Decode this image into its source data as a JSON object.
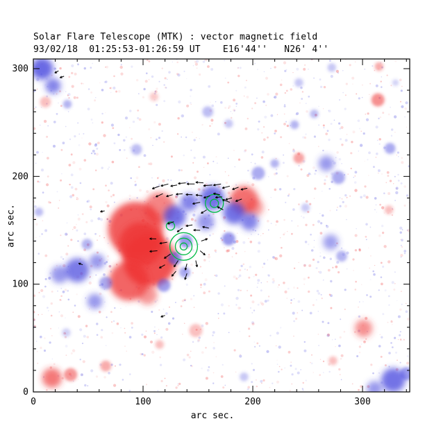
{
  "chart_data": {
    "type": "heatmap",
    "title": "Solar Flare Telescope (MTK) : vector magnetic field",
    "subtitle": "93/02/18  01:25:53-01:26:59 UT    E16'44''   N26' 4''",
    "xlabel": "arc sec.",
    "ylabel": "arc sec.",
    "xlim": [
      0,
      343
    ],
    "ylim": [
      0,
      309
    ],
    "x_major_ticks": [
      0,
      100,
      200,
      300
    ],
    "y_major_ticks": [
      0,
      100,
      200,
      300
    ],
    "minor_tick_step": 20,
    "legend": "red = negative polarity, blue = positive polarity, green = contours, black arrows = transverse field vectors",
    "colors": {
      "negative_red": "#ee3333",
      "positive_blue": "#4444dd",
      "contour_green": "#00bb44",
      "arrow_black": "#000000",
      "frame": "#000000"
    },
    "noise": {
      "count": 1400,
      "seed": 7
    },
    "blobs": [
      [
        93,
        151,
        25,
        "r",
        0.8
      ],
      [
        106,
        122,
        24,
        "r",
        0.85
      ],
      [
        98,
        137,
        20,
        "r",
        0.8
      ],
      [
        115,
        171,
        14,
        "r",
        0.6
      ],
      [
        87,
        103,
        18,
        "r",
        0.75
      ],
      [
        104,
        90,
        9,
        "r",
        0.5
      ],
      [
        192,
        178,
        13,
        "r",
        0.7
      ],
      [
        202,
        171,
        8,
        "r",
        0.45
      ],
      [
        314,
        271,
        6,
        "r",
        0.55
      ],
      [
        242,
        217,
        5,
        "r",
        0.45
      ],
      [
        315,
        302,
        4,
        "r",
        0.4
      ],
      [
        17,
        13,
        9,
        "r",
        0.65
      ],
      [
        34,
        16,
        6,
        "r",
        0.5
      ],
      [
        66,
        24,
        5,
        "r",
        0.4
      ],
      [
        301,
        59,
        8,
        "r",
        0.55
      ],
      [
        148,
        57,
        6,
        "r",
        0.3
      ],
      [
        11,
        269,
        5,
        "r",
        0.3
      ],
      [
        110,
        274,
        4,
        "r",
        0.25
      ],
      [
        324,
        169,
        4,
        "r",
        0.3
      ],
      [
        115,
        44,
        4,
        "r",
        0.3
      ],
      [
        273,
        29,
        4,
        "r",
        0.3
      ],
      [
        8,
        300,
        10,
        "b",
        0.8
      ],
      [
        18,
        284,
        7,
        "b",
        0.65
      ],
      [
        31,
        267,
        4,
        "b",
        0.4
      ],
      [
        40,
        113,
        11,
        "b",
        0.7
      ],
      [
        24,
        109,
        8,
        "b",
        0.55
      ],
      [
        58,
        121,
        7,
        "b",
        0.55
      ],
      [
        66,
        101,
        6,
        "b",
        0.45
      ],
      [
        56,
        84,
        7,
        "b",
        0.55
      ],
      [
        49,
        137,
        5,
        "b",
        0.4
      ],
      [
        129,
        163,
        10,
        "b",
        0.75
      ],
      [
        142,
        176,
        8,
        "b",
        0.65
      ],
      [
        163,
        180,
        11,
        "b",
        0.75
      ],
      [
        183,
        166,
        10,
        "b",
        0.75
      ],
      [
        197,
        158,
        8,
        "b",
        0.65
      ],
      [
        157,
        158,
        8,
        "b",
        0.55
      ],
      [
        178,
        142,
        6,
        "b",
        0.55
      ],
      [
        139,
        140,
        6,
        "b",
        0.55
      ],
      [
        129,
        124,
        6,
        "b",
        0.6
      ],
      [
        138,
        111,
        5,
        "b",
        0.45
      ],
      [
        205,
        203,
        6,
        "b",
        0.45
      ],
      [
        220,
        212,
        4,
        "b",
        0.4
      ],
      [
        238,
        248,
        4,
        "b",
        0.4
      ],
      [
        256,
        258,
        4,
        "b",
        0.35
      ],
      [
        267,
        212,
        7,
        "b",
        0.55
      ],
      [
        278,
        199,
        6,
        "b",
        0.45
      ],
      [
        271,
        139,
        7,
        "b",
        0.5
      ],
      [
        281,
        126,
        5,
        "b",
        0.4
      ],
      [
        325,
        226,
        5,
        "b",
        0.45
      ],
      [
        94,
        225,
        5,
        "b",
        0.35
      ],
      [
        159,
        260,
        5,
        "b",
        0.35
      ],
      [
        328,
        11,
        11,
        "b",
        0.75
      ],
      [
        311,
        3,
        7,
        "b",
        0.55
      ],
      [
        340,
        17,
        6,
        "b",
        0.5
      ],
      [
        192,
        14,
        4,
        "b",
        0.3
      ],
      [
        5,
        167,
        4,
        "b",
        0.35
      ],
      [
        242,
        287,
        4,
        "b",
        0.3
      ],
      [
        178,
        249,
        4,
        "b",
        0.3
      ],
      [
        272,
        301,
        4,
        "b",
        0.3
      ],
      [
        248,
        171,
        4,
        "b",
        0.28
      ],
      [
        119,
        99,
        6,
        "b",
        0.5
      ],
      [
        30,
        55,
        4,
        "b",
        0.25
      ],
      [
        330,
        287,
        3,
        "b",
        0.25
      ]
    ],
    "contours": [
      {
        "x": 137,
        "y": 135,
        "radii": [
          12.6,
          7.6,
          3.2
        ]
      },
      {
        "x": 165,
        "y": 175,
        "radii": [
          8.2,
          3.8
        ]
      },
      {
        "x": 125,
        "y": 154,
        "radii": [
          3.8
        ]
      }
    ],
    "arrows": [
      [
        115,
        191,
        200,
        7
      ],
      [
        123,
        193,
        195,
        7
      ],
      [
        131,
        192,
        190,
        6
      ],
      [
        139,
        194,
        185,
        7
      ],
      [
        147,
        193,
        180,
        7
      ],
      [
        155,
        194,
        175,
        7
      ],
      [
        163,
        192,
        185,
        8
      ],
      [
        171,
        193,
        190,
        7
      ],
      [
        179,
        191,
        195,
        7
      ],
      [
        187,
        190,
        200,
        6
      ],
      [
        195,
        189,
        192,
        6
      ],
      [
        118,
        184,
        205,
        7
      ],
      [
        127,
        183,
        195,
        6
      ],
      [
        136,
        184,
        186,
        6
      ],
      [
        145,
        183,
        178,
        6
      ],
      [
        154,
        182,
        172,
        6
      ],
      [
        172,
        181,
        185,
        6
      ],
      [
        181,
        180,
        195,
        6
      ],
      [
        190,
        179,
        200,
        6
      ],
      [
        152,
        176,
        192,
        7
      ],
      [
        158,
        169,
        212,
        6
      ],
      [
        173,
        169,
        152,
        6
      ],
      [
        179,
        176,
        160,
        7
      ],
      [
        161,
        182,
        198,
        6
      ],
      [
        170,
        183,
        168,
        6
      ],
      [
        128,
        158,
        200,
        6
      ],
      [
        136,
        152,
        215,
        6
      ],
      [
        145,
        155,
        190,
        6
      ],
      [
        152,
        150,
        178,
        6
      ],
      [
        160,
        152,
        168,
        6
      ],
      [
        122,
        139,
        190,
        7
      ],
      [
        125,
        128,
        215,
        7
      ],
      [
        132,
        122,
        237,
        7
      ],
      [
        140,
        119,
        255,
        6
      ],
      [
        148,
        122,
        282,
        6
      ],
      [
        152,
        131,
        320,
        6
      ],
      [
        153,
        140,
        20,
        6
      ],
      [
        113,
        131,
        185,
        7
      ],
      [
        112,
        142,
        178,
        6
      ],
      [
        130,
        112,
        230,
        6
      ],
      [
        140,
        110,
        252,
        6
      ],
      [
        120,
        118,
        210,
        6
      ],
      [
        23,
        298,
        210,
        4
      ],
      [
        28,
        293,
        200,
        4
      ],
      [
        45,
        118,
        160,
        4
      ],
      [
        65,
        168,
        190,
        4
      ],
      [
        120,
        71,
        200,
        4
      ]
    ]
  }
}
